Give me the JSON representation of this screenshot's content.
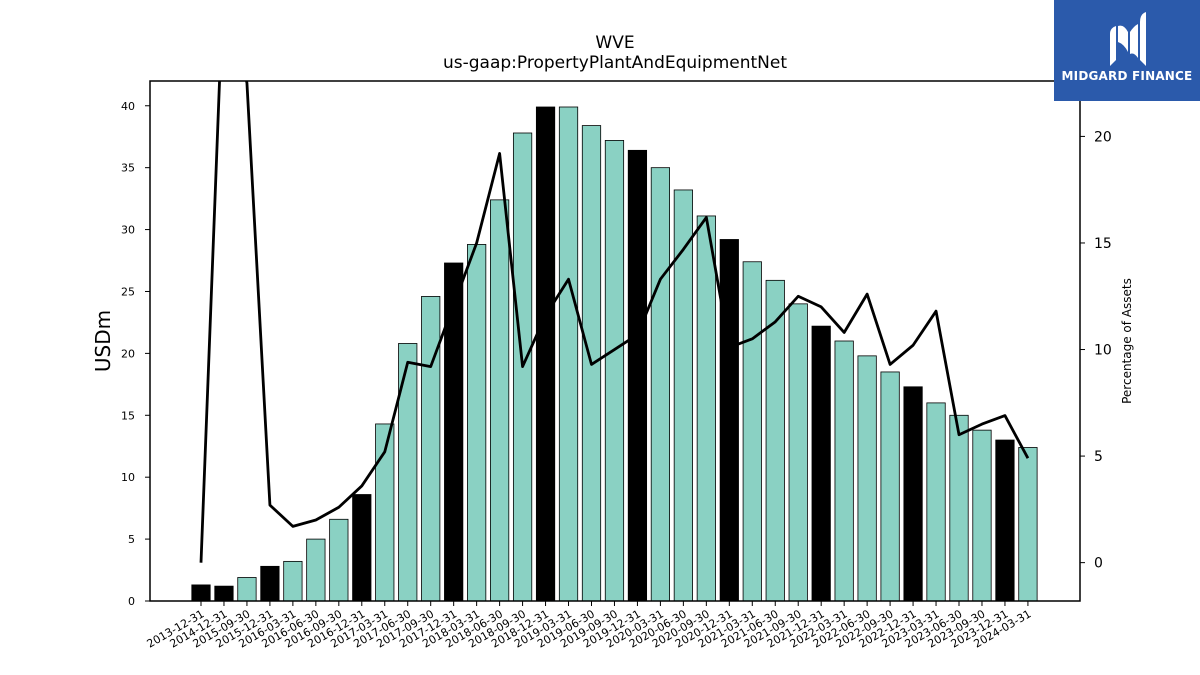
{
  "chart_data": {
    "type": "bar",
    "title": "WVE",
    "subtitle": "us-gaap:PropertyPlantAndEquipmentNet",
    "ylabel": "USDm",
    "y2label": "Percentage of Assets",
    "ylim": [
      0,
      42
    ],
    "y2lim": [
      -1.8,
      22.6
    ],
    "yticks": [
      0,
      5,
      10,
      15,
      20,
      25,
      30,
      35,
      40
    ],
    "y2ticks": [
      0,
      5,
      10,
      15,
      20
    ],
    "categories": [
      "2013-12-31",
      "2014-12-31",
      "2015-09-30",
      "2015-12-31",
      "2016-03-31",
      "2016-06-30",
      "2016-09-30",
      "2016-12-31",
      "2017-03-31",
      "2017-06-30",
      "2017-09-30",
      "2017-12-31",
      "2018-03-31",
      "2018-06-30",
      "2018-09-30",
      "2018-12-31",
      "2019-03-31",
      "2019-06-30",
      "2019-09-30",
      "2019-12-31",
      "2020-03-31",
      "2020-06-30",
      "2020-09-30",
      "2020-12-31",
      "2021-03-31",
      "2021-06-30",
      "2021-09-30",
      "2021-12-31",
      "2022-03-31",
      "2022-06-30",
      "2022-09-30",
      "2022-12-31",
      "2023-03-31",
      "2023-06-30",
      "2023-09-30",
      "2023-12-31",
      "2024-03-31"
    ],
    "series": [
      {
        "type": "bar",
        "values": [
          1.3,
          1.2,
          1.9,
          2.8,
          3.2,
          5.0,
          6.6,
          8.6,
          14.3,
          20.8,
          24.6,
          27.3,
          28.8,
          32.4,
          37.8,
          39.9,
          39.9,
          38.4,
          37.2,
          36.4,
          35.0,
          33.2,
          31.1,
          29.2,
          27.4,
          25.9,
          24.0,
          22.2,
          21.0,
          19.8,
          18.5,
          17.3,
          16.0,
          15.0,
          13.8,
          13.0,
          12.4
        ],
        "highlight": [
          true,
          true,
          false,
          true,
          false,
          false,
          false,
          true,
          false,
          false,
          false,
          true,
          false,
          false,
          false,
          true,
          false,
          false,
          false,
          true,
          false,
          false,
          false,
          true,
          false,
          false,
          false,
          true,
          false,
          false,
          false,
          true,
          false,
          false,
          false,
          true,
          false
        ]
      },
      {
        "type": "line",
        "axis": "secondary",
        "values": [
          0.0,
          28.0,
          22.5,
          2.7,
          1.7,
          2.0,
          2.6,
          3.6,
          5.2,
          9.4,
          9.2,
          12.1,
          15.0,
          19.2,
          9.2,
          11.6,
          13.3,
          9.3,
          10.0,
          10.7,
          13.3,
          14.7,
          16.2,
          10.1,
          10.5,
          11.3,
          12.5,
          12.0,
          10.8,
          12.6,
          9.3,
          10.2,
          11.8,
          6.0,
          6.5,
          6.9,
          4.9
        ]
      }
    ],
    "colors": {
      "bar": "#8ad1c3",
      "bar_highlight": "#000000",
      "line": "#000000"
    }
  },
  "logo": {
    "text": "MIDGARD FINANCE"
  }
}
